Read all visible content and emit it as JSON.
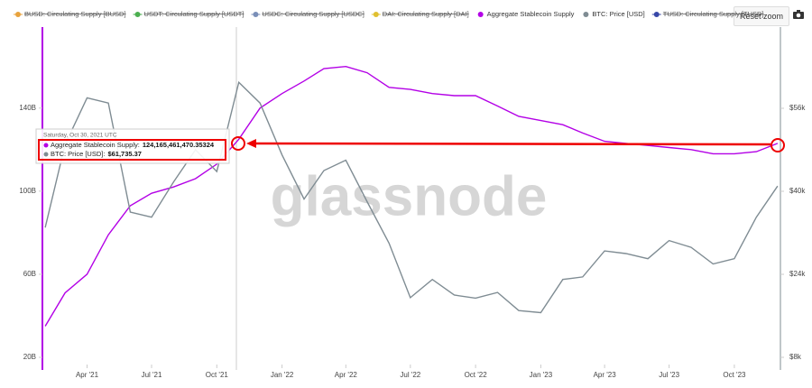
{
  "chart_data": {
    "type": "line",
    "watermark": "glassnode",
    "reset_button": "Reset zoom",
    "x": [
      "2021-02",
      "2021-03",
      "2021-04",
      "2021-05",
      "2021-06",
      "2021-07",
      "2021-08",
      "2021-09",
      "2021-10",
      "2021-11",
      "2021-12",
      "2022-01",
      "2022-02",
      "2022-03",
      "2022-04",
      "2022-05",
      "2022-06",
      "2022-07",
      "2022-08",
      "2022-09",
      "2022-10",
      "2022-11",
      "2022-12",
      "2023-01",
      "2023-02",
      "2023-03",
      "2023-04",
      "2023-05",
      "2023-06",
      "2023-07",
      "2023-08",
      "2023-09",
      "2023-10",
      "2023-11",
      "2023-12"
    ],
    "series": [
      {
        "name": "BUSD: Circulating Supply [BUSD]",
        "color": "#e8a33d",
        "visible": false
      },
      {
        "name": "USDT: Circulating Supply [USDT]",
        "color": "#4caf50",
        "visible": false
      },
      {
        "name": "USDC: Circulating Supply [USDC]",
        "color": "#7a8fb8",
        "visible": false
      },
      {
        "name": "DAI: Circulating Supply [DAI]",
        "color": "#e0c030",
        "visible": false
      },
      {
        "name": "Aggregate Stablecoin Supply",
        "color": "#b300e6",
        "visible": true,
        "axis": "y",
        "values": [
          35,
          51,
          60,
          79,
          93,
          99,
          102,
          106,
          113,
          125,
          140,
          147,
          153,
          159,
          160,
          157,
          150,
          149,
          147,
          146,
          146,
          141,
          136,
          134,
          132,
          128,
          124,
          123,
          122,
          121,
          120,
          118,
          118,
          119,
          123
        ]
      },
      {
        "name": "BTC: Price [USD]",
        "color": "#7f8c93",
        "visible": true,
        "axis": "y2",
        "values": [
          33000,
          49000,
          58000,
          57000,
          36000,
          35000,
          41800,
          48000,
          43800,
          61000,
          57000,
          47000,
          38500,
          44000,
          46000,
          38000,
          30000,
          19500,
          23000,
          20000,
          19400,
          20500,
          17000,
          16600,
          23000,
          23500,
          28500,
          28000,
          27000,
          30500,
          29200,
          26000,
          27000,
          35000,
          41000
        ]
      },
      {
        "name": "TUSD: Circulating Supply [TUSD]",
        "color": "#3848a8",
        "visible": false
      }
    ],
    "ylim": [
      20,
      179
    ],
    "yticks": [
      {
        "value": 20,
        "label": "20B"
      },
      {
        "value": 60,
        "label": "60B"
      },
      {
        "value": 100,
        "label": "100B"
      },
      {
        "value": 140,
        "label": "140B"
      }
    ],
    "y2lim": [
      8000,
      71650
    ],
    "y2ticks": [
      {
        "value": 8000,
        "label": "$8k"
      },
      {
        "value": 24000,
        "label": "$24k"
      },
      {
        "value": 40000,
        "label": "$40k"
      },
      {
        "value": 56000,
        "label": "$56k"
      }
    ],
    "xticks": [
      {
        "value": "2021-04",
        "label": "Apr '21"
      },
      {
        "value": "2021-07",
        "label": "Jul '21"
      },
      {
        "value": "2021-10",
        "label": "Oct '21"
      },
      {
        "value": "2022-01",
        "label": "Jan '22"
      },
      {
        "value": "2022-04",
        "label": "Apr '22"
      },
      {
        "value": "2022-07",
        "label": "Jul '22"
      },
      {
        "value": "2022-10",
        "label": "Oct '22"
      },
      {
        "value": "2023-01",
        "label": "Jan '23"
      },
      {
        "value": "2023-04",
        "label": "Apr '23"
      },
      {
        "value": "2023-07",
        "label": "Jul '23"
      },
      {
        "value": "2023-10",
        "label": "Oct '23"
      }
    ],
    "tooltip": {
      "title": "Saturday, Oct 30, 2021 UTC",
      "rows": [
        {
          "label": "Aggregate Stablecoin Supply:",
          "value": "124,165,461,470.35324"
        },
        {
          "label": "BTC: Price [USD]:",
          "value": "$61,735.37"
        }
      ]
    }
  }
}
